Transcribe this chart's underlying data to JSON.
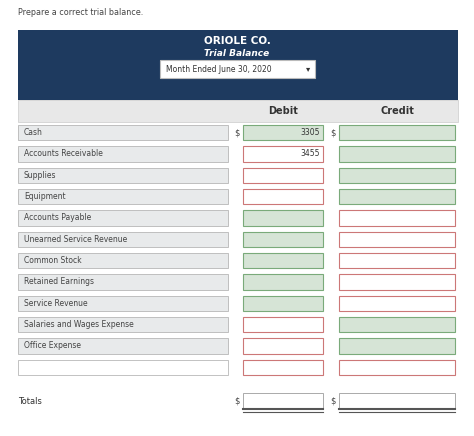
{
  "title_line1": "ORIOLE CO.",
  "title_line2": "Trial Balance",
  "period_label": "Month Ended June 30, 2020",
  "period_arrow": "▾",
  "header_bg": "#1e3a5f",
  "header_text_color": "#ffffff",
  "col_debit": "Debit",
  "col_credit": "Credit",
  "rows": [
    {
      "label": "Cash",
      "debit_val": "3305",
      "credit_val": "",
      "debit_border": "green",
      "credit_border": "green"
    },
    {
      "label": "Accounts Receivable",
      "debit_val": "3455",
      "credit_val": "",
      "debit_border": "red",
      "credit_border": "green"
    },
    {
      "label": "Supplies",
      "debit_val": "",
      "credit_val": "",
      "debit_border": "red",
      "credit_border": "green"
    },
    {
      "label": "Equipment",
      "debit_val": "",
      "credit_val": "",
      "debit_border": "red",
      "credit_border": "green"
    },
    {
      "label": "Accounts Payable",
      "debit_val": "",
      "credit_val": "",
      "debit_border": "green",
      "credit_border": "red"
    },
    {
      "label": "Unearned Service Revenue",
      "debit_val": "",
      "credit_val": "",
      "debit_border": "green",
      "credit_border": "red"
    },
    {
      "label": "Common Stock",
      "debit_val": "",
      "credit_val": "",
      "debit_border": "green",
      "credit_border": "red"
    },
    {
      "label": "Retained Earnings",
      "debit_val": "",
      "credit_val": "",
      "debit_border": "green",
      "credit_border": "red"
    },
    {
      "label": "Service Revenue",
      "debit_val": "",
      "credit_val": "",
      "debit_border": "green",
      "credit_border": "red"
    },
    {
      "label": "Salaries and Wages Expense",
      "debit_val": "",
      "credit_val": "",
      "debit_border": "red",
      "credit_border": "green"
    },
    {
      "label": "Office Expense",
      "debit_val": "",
      "credit_val": "",
      "debit_border": "red",
      "credit_border": "green"
    },
    {
      "label": "",
      "debit_val": "",
      "credit_val": "",
      "debit_border": "red",
      "credit_border": "red"
    }
  ],
  "totals_label": "Totals",
  "preparer_text": "Prepare a correct trial balance.",
  "bg_color": "#ffffff",
  "green_fill": "#d6e4d6",
  "green_edge": "#7aaa7a",
  "red_fill": "#ffffff",
  "red_edge": "#cc7777",
  "label_fill": "#e8eaeb",
  "label_edge": "#aaaaaa",
  "empty_label_fill": "#ffffff",
  "subheader_fill": "#e8e8e8",
  "subheader_edge": "#cccccc"
}
